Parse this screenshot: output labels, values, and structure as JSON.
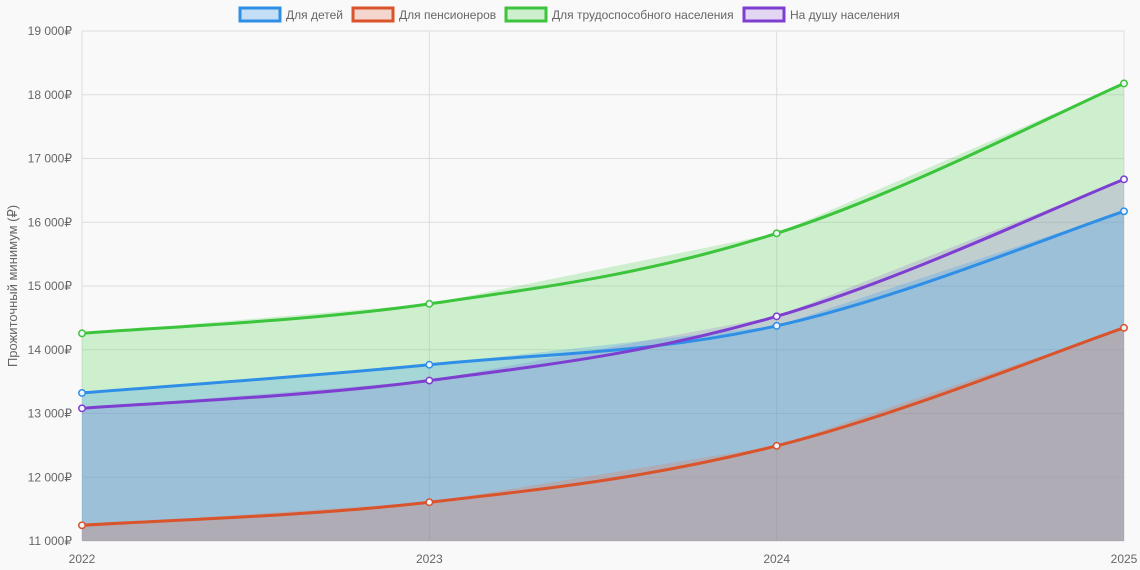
{
  "chart_data": {
    "type": "area",
    "x": [
      "2022",
      "2023",
      "2024",
      "2025"
    ],
    "series": [
      {
        "name": "Для детей",
        "values": [
          13322,
          13765,
          14375,
          16172
        ],
        "color": "#2f8fe6",
        "fill": "rgba(70,160,235,0.30)"
      },
      {
        "name": "Для пенсионеров",
        "values": [
          11246,
          11608,
          12493,
          14344
        ],
        "color": "#d9532b",
        "fill": "rgba(235,110,80,0.25)"
      },
      {
        "name": "Для трудоспособного населения",
        "values": [
          14257,
          14720,
          15826,
          18177
        ],
        "color": "#3cc43c",
        "fill": "rgba(80,210,80,0.25)"
      },
      {
        "name": "На душу населения",
        "values": [
          13081,
          13517,
          14524,
          16673
        ],
        "color": "#7e3fd1",
        "fill": "rgba(150,90,220,0.22)"
      }
    ],
    "ylabel": "Прожиточный минимум (₽)",
    "xlabel": "",
    "ylim": [
      11000,
      19000
    ],
    "ytick_step": 1000,
    "ytick_labels": [
      "11 000₽",
      "12 000₽",
      "13 000₽",
      "14 000₽",
      "15 000₽",
      "16 000₽",
      "17 000₽",
      "18 000₽",
      "19 000₽"
    ],
    "grid": true,
    "legend_position": "top-center"
  }
}
